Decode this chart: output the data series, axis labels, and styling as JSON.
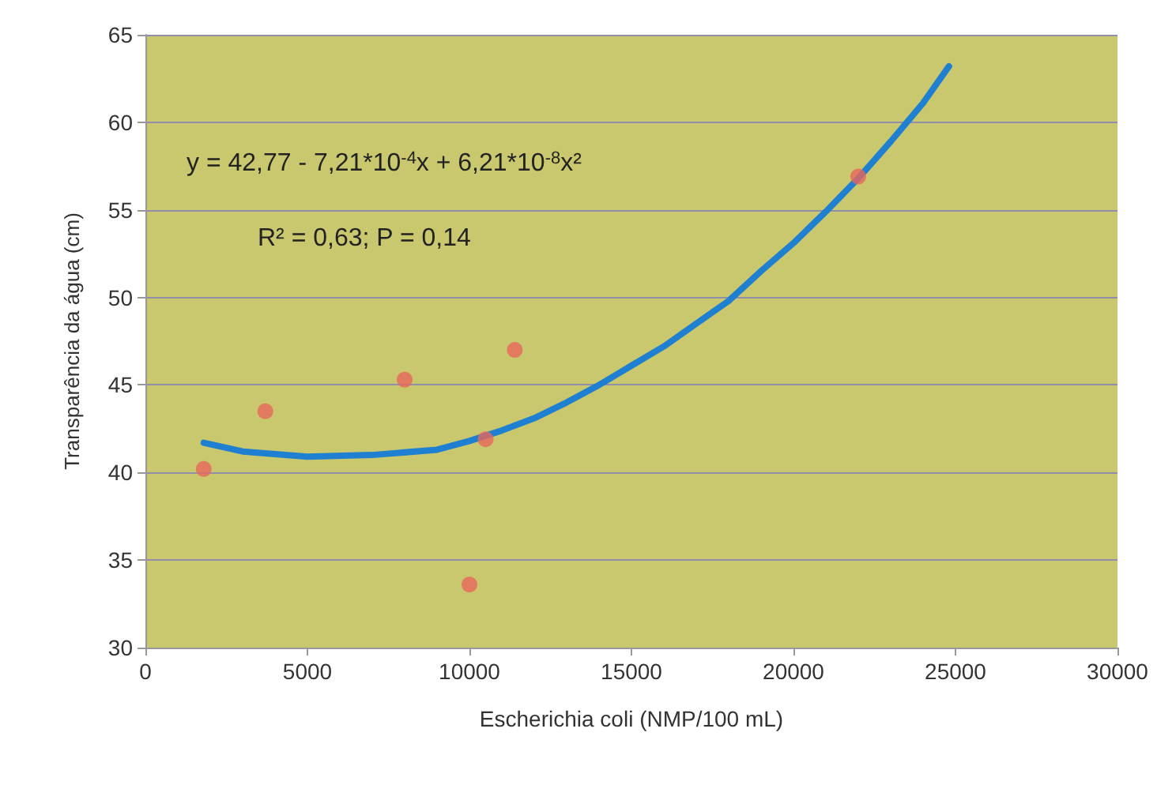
{
  "chart_data": {
    "type": "scatter",
    "xlabel": "Escherichia coli (NMP/100 mL)",
    "ylabel": "Transparência da água (cm)",
    "annotations": [
      "y = 42,77 - 7,21*10$^{-4}$x + 6,21*10$^{-8}$x²",
      "R² = 0,63; P = 0,14"
    ],
    "series": [
      {
        "color": "#e8675c",
        "x": [
          1800,
          3700,
          8000,
          10000,
          10500,
          11400,
          22000
        ],
        "values": [
          40.2,
          43.5,
          45.3,
          33.6,
          41.9,
          47.0,
          56.9
        ]
      },
      {
        "type": "line",
        "color": "#1f7fd0",
        "marker": "none",
        "x": [
          1800,
          3000,
          5000,
          7000,
          9000,
          10000,
          11000,
          12000,
          13000,
          14000,
          15000,
          16000,
          17000,
          18000,
          19000,
          20000,
          21000,
          22000,
          23000,
          24000,
          24800
        ],
        "values": [
          41.7,
          41.2,
          40.9,
          41.0,
          41.3,
          41.8,
          42.4,
          43.1,
          44.0,
          45.0,
          46.1,
          47.2,
          48.5,
          49.8,
          51.5,
          53.1,
          54.9,
          56.8,
          58.9,
          61.1,
          63.2
        ]
      }
    ],
    "marker": "circle",
    "xlim": [
      0,
      30000
    ],
    "xticks": [
      0,
      5000,
      10000,
      15000,
      20000,
      25000,
      30000
    ],
    "ylim": [
      30,
      65
    ],
    "yticks": [
      30,
      35,
      40,
      45,
      50,
      55,
      60,
      65
    ],
    "grid": "y"
  }
}
